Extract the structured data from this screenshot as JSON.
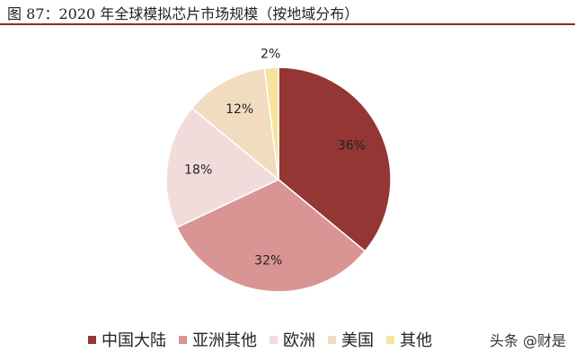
{
  "title": "图 87：2020 年全球模拟芯片市场规模（按地域分布）",
  "watermark": "头条 @财是",
  "chart_data": {
    "type": "pie",
    "slices": [
      {
        "label": "中国大陆",
        "value": 36,
        "text": "36%",
        "color": "#943634"
      },
      {
        "label": "亚洲其他",
        "value": 32,
        "text": "32%",
        "color": "#d99594"
      },
      {
        "label": "欧洲",
        "value": 18,
        "text": "18%",
        "color": "#f2dcdb"
      },
      {
        "label": "美国",
        "value": 12,
        "text": "12%",
        "color": "#f1dcc0"
      },
      {
        "label": "其他",
        "value": 2,
        "text": "2%",
        "color": "#f5e49c"
      }
    ],
    "legend_position": "bottom"
  }
}
